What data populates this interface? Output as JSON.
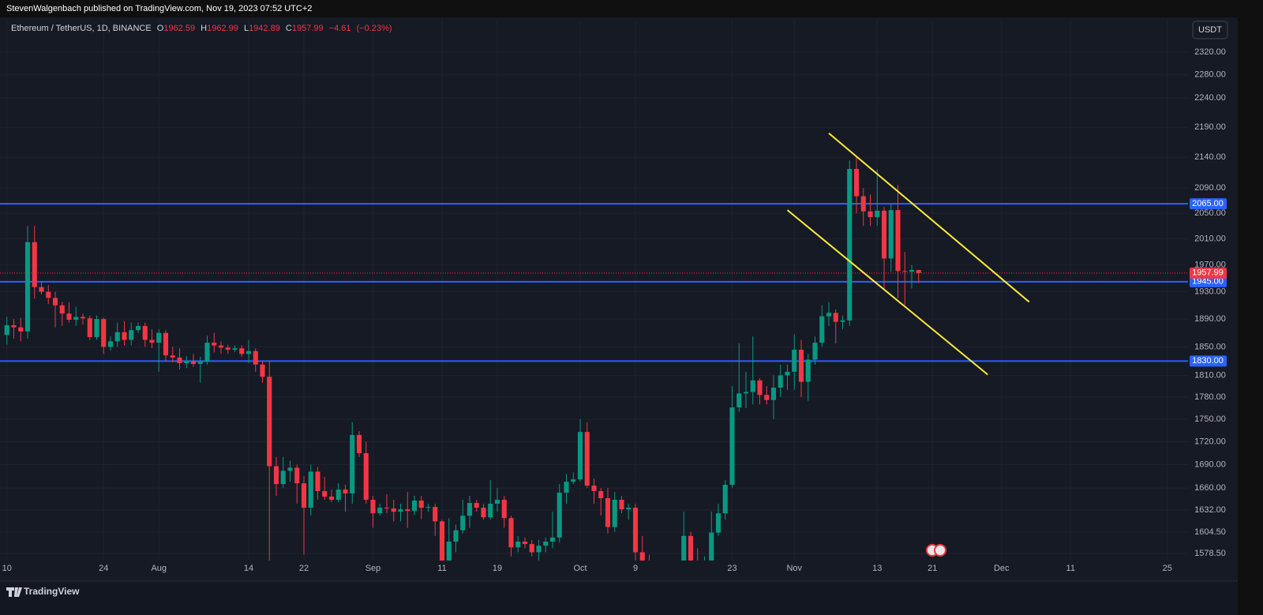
{
  "header": "StevenWalgenbach published on TradingView.com, Nov 19, 2023 07:52 UTC+2",
  "footer": "TradingView",
  "chart_data": {
    "type": "candlestick",
    "symbol": "Ethereum / TetherUS, 1D, BINANCE",
    "ohlc_labels": [
      "O",
      "H",
      "L",
      "C"
    ],
    "change": {
      "value": -4.61,
      "label": "−4.61"
    },
    "change_percent": {
      "value": -0.23,
      "label": "(−0.23%)"
    },
    "currency": "USDT",
    "log_scale": true,
    "grid": true,
    "up_color": "#089981",
    "down_color": "#f23645",
    "xlim": [
      "2023-07-09",
      "2023-12-28"
    ],
    "ylim": [
      1570,
      2380
    ],
    "xticks": [
      {
        "value": "2023-07-10",
        "label": "10"
      },
      {
        "value": "2023-07-24",
        "label": "24"
      },
      {
        "value": "2023-08-01",
        "label": "Aug"
      },
      {
        "value": "2023-08-14",
        "label": "14"
      },
      {
        "value": "2023-08-22",
        "label": "22"
      },
      {
        "value": "2023-09-01",
        "label": "Sep"
      },
      {
        "value": "2023-09-11",
        "label": "11"
      },
      {
        "value": "2023-09-19",
        "label": "19"
      },
      {
        "value": "2023-10-01",
        "label": "Oct"
      },
      {
        "value": "2023-10-09",
        "label": "9"
      },
      {
        "value": "2023-10-23",
        "label": "23"
      },
      {
        "value": "2023-11-01",
        "label": "Nov"
      },
      {
        "value": "2023-11-13",
        "label": "13"
      },
      {
        "value": "2023-11-21",
        "label": "21"
      },
      {
        "value": "2023-12-01",
        "label": "Dec"
      },
      {
        "value": "2023-12-11",
        "label": "11"
      },
      {
        "value": "2023-12-25",
        "label": "25"
      }
    ],
    "yticks": [
      {
        "value": 1578.5,
        "label": "1578.50"
      },
      {
        "value": 1604.5,
        "label": "1604.50"
      },
      {
        "value": 1632,
        "label": "1632.00"
      },
      {
        "value": 1660,
        "label": "1660.00"
      },
      {
        "value": 1690,
        "label": "1690.00"
      },
      {
        "value": 1720,
        "label": "1720.00"
      },
      {
        "value": 1750,
        "label": "1750.00"
      },
      {
        "value": 1780,
        "label": "1780.00"
      },
      {
        "value": 1810,
        "label": "1810.00"
      },
      {
        "value": 1850,
        "label": "1850.00"
      },
      {
        "value": 1890,
        "label": "1890.00"
      },
      {
        "value": 1930,
        "label": "1930.00"
      },
      {
        "value": 1970,
        "label": "1970.00"
      },
      {
        "value": 2010,
        "label": "2010.00"
      },
      {
        "value": 2050,
        "label": "2050.00"
      },
      {
        "value": 2090,
        "label": "2090.00"
      },
      {
        "value": 2140,
        "label": "2140.00"
      },
      {
        "value": 2190,
        "label": "2190.00"
      },
      {
        "value": 2240,
        "label": "2240.00"
      },
      {
        "value": 2280,
        "label": "2280.00"
      },
      {
        "value": 2320,
        "label": "2320.00"
      }
    ],
    "levels": [
      {
        "value": 2065,
        "label": "2065.00",
        "color": "#2962ff"
      },
      {
        "value": 1945,
        "label": "1945.00",
        "color": "#2962ff"
      },
      {
        "value": 1830,
        "label": "1830.00",
        "color": "#2962ff"
      }
    ],
    "trendlines": [
      {
        "x": [
          "2023-11-06",
          "2023-12-05"
        ],
        "y": [
          2180,
          1915
        ],
        "color": "#ffeb3b"
      },
      {
        "x": [
          "2023-10-31",
          "2023-11-29"
        ],
        "y": [
          2055,
          1811
        ],
        "color": "#ffeb3b"
      }
    ],
    "x": [
      "2023-07-10",
      "2023-07-11",
      "2023-07-12",
      "2023-07-13",
      "2023-07-14",
      "2023-07-15",
      "2023-07-16",
      "2023-07-17",
      "2023-07-18",
      "2023-07-19",
      "2023-07-20",
      "2023-07-21",
      "2023-07-22",
      "2023-07-23",
      "2023-07-24",
      "2023-07-25",
      "2023-07-26",
      "2023-07-27",
      "2023-07-28",
      "2023-07-29",
      "2023-07-30",
      "2023-07-31",
      "2023-08-01",
      "2023-08-02",
      "2023-08-03",
      "2023-08-04",
      "2023-08-05",
      "2023-08-06",
      "2023-08-07",
      "2023-08-08",
      "2023-08-09",
      "2023-08-10",
      "2023-08-11",
      "2023-08-12",
      "2023-08-13",
      "2023-08-14",
      "2023-08-15",
      "2023-08-16",
      "2023-08-17",
      "2023-08-18",
      "2023-08-19",
      "2023-08-20",
      "2023-08-21",
      "2023-08-22",
      "2023-08-23",
      "2023-08-24",
      "2023-08-25",
      "2023-08-26",
      "2023-08-27",
      "2023-08-28",
      "2023-08-29",
      "2023-08-30",
      "2023-08-31",
      "2023-09-01",
      "2023-09-02",
      "2023-09-03",
      "2023-09-04",
      "2023-09-05",
      "2023-09-06",
      "2023-09-07",
      "2023-09-08",
      "2023-09-09",
      "2023-09-10",
      "2023-09-11",
      "2023-09-12",
      "2023-09-13",
      "2023-09-14",
      "2023-09-15",
      "2023-09-16",
      "2023-09-17",
      "2023-09-18",
      "2023-09-19",
      "2023-09-20",
      "2023-09-21",
      "2023-09-22",
      "2023-09-23",
      "2023-09-24",
      "2023-09-25",
      "2023-09-26",
      "2023-09-27",
      "2023-09-28",
      "2023-09-29",
      "2023-09-30",
      "2023-10-01",
      "2023-10-02",
      "2023-10-03",
      "2023-10-04",
      "2023-10-05",
      "2023-10-06",
      "2023-10-07",
      "2023-10-08",
      "2023-10-09",
      "2023-10-10",
      "2023-10-11",
      "2023-10-12",
      "2023-10-13",
      "2023-10-14",
      "2023-10-15",
      "2023-10-16",
      "2023-10-17",
      "2023-10-18",
      "2023-10-19",
      "2023-10-20",
      "2023-10-21",
      "2023-10-22",
      "2023-10-23",
      "2023-10-24",
      "2023-10-25",
      "2023-10-26",
      "2023-10-27",
      "2023-10-28",
      "2023-10-29",
      "2023-10-30",
      "2023-10-31",
      "2023-11-01",
      "2023-11-02",
      "2023-11-03",
      "2023-11-04",
      "2023-11-05",
      "2023-11-06",
      "2023-11-07",
      "2023-11-08",
      "2023-11-09",
      "2023-11-10",
      "2023-11-11",
      "2023-11-12",
      "2023-11-13",
      "2023-11-14",
      "2023-11-15",
      "2023-11-16",
      "2023-11-17",
      "2023-11-18",
      "2023-11-19"
    ],
    "open": [
      1867,
      1881,
      1878,
      1872,
      2005,
      1937,
      1930,
      1921,
      1910,
      1898,
      1889,
      1893,
      1891,
      1864,
      1890,
      1850,
      1858,
      1871,
      1860,
      1874,
      1880,
      1860,
      1856,
      1870,
      1838,
      1835,
      1827,
      1830,
      1826,
      1829,
      1856,
      1852,
      1849,
      1846,
      1848,
      1840,
      1844,
      1825,
      1808,
      1688,
      1665,
      1682,
      1686,
      1666,
      1635,
      1681,
      1656,
      1649,
      1645,
      1658,
      1653,
      1729,
      1705,
      1645,
      1628,
      1635,
      1634,
      1630,
      1633,
      1631,
      1644,
      1635,
      1636,
      1618,
      1551,
      1593,
      1607,
      1625,
      1641,
      1635,
      1623,
      1640,
      1645,
      1622,
      1586,
      1593,
      1590,
      1580,
      1588,
      1593,
      1598,
      1654,
      1668,
      1671,
      1733,
      1663,
      1656,
      1647,
      1611,
      1645,
      1633,
      1635,
      1580,
      1567,
      1566,
      1539,
      1553,
      1555,
      1557,
      1600,
      1565,
      1564,
      1566,
      1604,
      1628,
      1664,
      1766,
      1785,
      1787,
      1803,
      1783,
      1776,
      1793,
      1810,
      1815,
      1846,
      1801,
      1832,
      1856,
      1894,
      1899,
      1886,
      1888,
      2121,
      2077,
      2053,
      2044,
      2054,
      1980,
      2055,
      1961,
      1960,
      1962.59
    ],
    "high": [
      1893,
      1890,
      1892,
      2030,
      2030,
      1946,
      1940,
      1930,
      1915,
      1915,
      1908,
      1898,
      1895,
      1895,
      1892,
      1865,
      1885,
      1887,
      1885,
      1885,
      1885,
      1875,
      1875,
      1874,
      1850,
      1848,
      1837,
      1840,
      1836,
      1866,
      1870,
      1858,
      1853,
      1852,
      1852,
      1860,
      1848,
      1830,
      1830,
      1700,
      1700,
      1695,
      1690,
      1675,
      1690,
      1687,
      1674,
      1658,
      1666,
      1664,
      1746,
      1734,
      1720,
      1650,
      1640,
      1652,
      1645,
      1640,
      1655,
      1650,
      1650,
      1640,
      1640,
      1620,
      1622,
      1614,
      1645,
      1650,
      1645,
      1640,
      1670,
      1660,
      1650,
      1625,
      1600,
      1598,
      1595,
      1595,
      1598,
      1630,
      1665,
      1678,
      1680,
      1750,
      1746,
      1672,
      1660,
      1660,
      1655,
      1650,
      1640,
      1640,
      1600,
      1577,
      1568,
      1570,
      1565,
      1565,
      1630,
      1605,
      1585,
      1575,
      1630,
      1640,
      1670,
      1795,
      1855,
      1815,
      1865,
      1806,
      1795,
      1810,
      1825,
      1825,
      1868,
      1860,
      1840,
      1865,
      1910,
      1915,
      1904,
      1895,
      2135,
      2140,
      2090,
      2080,
      2120,
      2060,
      2065,
      2095,
      1990,
      1970,
      1962.99
    ],
    "low": [
      1853,
      1862,
      1858,
      1862,
      1920,
      1926,
      1912,
      1878,
      1880,
      1885,
      1880,
      1882,
      1860,
      1860,
      1840,
      1845,
      1850,
      1852,
      1852,
      1870,
      1850,
      1848,
      1815,
      1830,
      1828,
      1818,
      1820,
      1822,
      1800,
      1825,
      1842,
      1840,
      1840,
      1843,
      1836,
      1827,
      1815,
      1800,
      1550,
      1650,
      1660,
      1668,
      1640,
      1577,
      1625,
      1645,
      1645,
      1642,
      1642,
      1630,
      1640,
      1700,
      1640,
      1610,
      1625,
      1628,
      1618,
      1618,
      1610,
      1626,
      1621,
      1630,
      1600,
      1530,
      1547,
      1580,
      1603,
      1610,
      1630,
      1620,
      1620,
      1630,
      1610,
      1575,
      1580,
      1585,
      1575,
      1570,
      1580,
      1585,
      1592,
      1640,
      1665,
      1668,
      1660,
      1640,
      1625,
      1603,
      1605,
      1628,
      1620,
      1560,
      1560,
      1550,
      1521,
      1535,
      1548,
      1545,
      1555,
      1555,
      1555,
      1545,
      1560,
      1600,
      1620,
      1660,
      1760,
      1765,
      1770,
      1770,
      1770,
      1750,
      1780,
      1790,
      1790,
      1780,
      1775,
      1825,
      1850,
      1880,
      1855,
      1875,
      1880,
      2050,
      2030,
      2030,
      2030,
      1935,
      1960,
      1920,
      1910,
      1935,
      1942.89
    ],
    "close": [
      1881,
      1878,
      1872,
      2005,
      1937,
      1930,
      1921,
      1910,
      1898,
      1889,
      1893,
      1891,
      1864,
      1890,
      1850,
      1858,
      1871,
      1860,
      1874,
      1880,
      1860,
      1856,
      1870,
      1838,
      1835,
      1827,
      1830,
      1826,
      1829,
      1856,
      1852,
      1849,
      1846,
      1848,
      1840,
      1844,
      1825,
      1808,
      1688,
      1665,
      1682,
      1686,
      1666,
      1635,
      1681,
      1656,
      1649,
      1645,
      1658,
      1653,
      1729,
      1705,
      1645,
      1628,
      1635,
      1634,
      1630,
      1633,
      1631,
      1644,
      1635,
      1636,
      1618,
      1551,
      1593,
      1607,
      1625,
      1641,
      1635,
      1623,
      1640,
      1645,
      1622,
      1586,
      1593,
      1590,
      1580,
      1588,
      1593,
      1598,
      1654,
      1668,
      1671,
      1733,
      1663,
      1656,
      1647,
      1611,
      1645,
      1633,
      1635,
      1580,
      1567,
      1566,
      1539,
      1553,
      1555,
      1557,
      1600,
      1565,
      1564,
      1566,
      1604,
      1628,
      1664,
      1766,
      1785,
      1787,
      1803,
      1783,
      1776,
      1793,
      1810,
      1815,
      1846,
      1801,
      1832,
      1856,
      1894,
      1899,
      1886,
      1888,
      2121,
      2077,
      2053,
      2044,
      2054,
      1980,
      2055,
      1961,
      1960,
      1962.6,
      1957.99
    ]
  }
}
